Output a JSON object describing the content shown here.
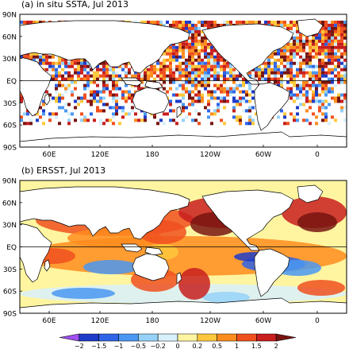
{
  "panels": [
    {
      "title": "(a) in situ SSTA, Jul 2013",
      "style": "sparse-gridded"
    },
    {
      "title": "(b) ERSST, Jul 2013",
      "style": "smooth-filled"
    }
  ],
  "lat_labels": [
    "90N",
    "60N",
    "30N",
    "EQ",
    "30S",
    "60S",
    "90S"
  ],
  "lon_labels": [
    "60E",
    "120E",
    "180",
    "120W",
    "60W",
    "0"
  ],
  "colorbar": {
    "ticks": [
      "−2",
      "−1.5",
      "−1",
      "−0.5",
      "−0.2",
      "0",
      "0.2",
      "0.5",
      "1",
      "1.5",
      "2"
    ],
    "colors": [
      "#a050f0",
      "#1e3cc8",
      "#2f64e6",
      "#4a98f2",
      "#96d2f8",
      "#d8f0fc",
      "#fff5a0",
      "#ffc83c",
      "#ff8c1e",
      "#f0501e",
      "#c81e1e",
      "#781410"
    ]
  }
}
